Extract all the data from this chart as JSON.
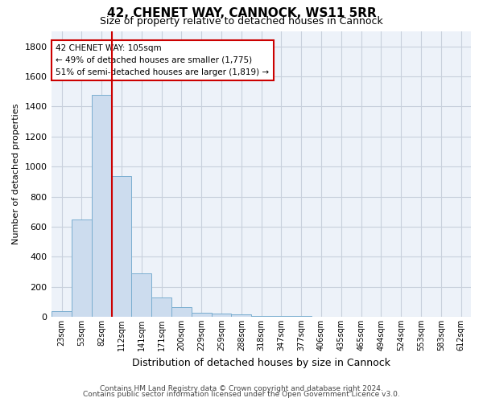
{
  "title1": "42, CHENET WAY, CANNOCK, WS11 5RR",
  "title2": "Size of property relative to detached houses in Cannock",
  "xlabel": "Distribution of detached houses by size in Cannock",
  "ylabel": "Number of detached properties",
  "bins": [
    "23sqm",
    "53sqm",
    "82sqm",
    "112sqm",
    "141sqm",
    "171sqm",
    "200sqm",
    "229sqm",
    "259sqm",
    "288sqm",
    "318sqm",
    "347sqm",
    "377sqm",
    "406sqm",
    "435sqm",
    "465sqm",
    "494sqm",
    "524sqm",
    "553sqm",
    "583sqm",
    "612sqm"
  ],
  "bar_heights": [
    40,
    650,
    1475,
    935,
    290,
    130,
    65,
    25,
    20,
    15,
    5,
    5,
    5,
    0,
    0,
    0,
    0,
    0,
    0,
    0,
    0
  ],
  "bar_color": "#ccdcee",
  "bar_edge_color": "#7aaed0",
  "grid_color": "#c8d0dc",
  "vline_color": "#cc0000",
  "annotation_line1": "42 CHENET WAY: 105sqm",
  "annotation_line2": "← 49% of detached houses are smaller (1,775)",
  "annotation_line3": "51% of semi-detached houses are larger (1,819) →",
  "annotation_box_color": "#cc0000",
  "ylim": [
    0,
    1900
  ],
  "yticks": [
    0,
    200,
    400,
    600,
    800,
    1000,
    1200,
    1400,
    1600,
    1800
  ],
  "footer1": "Contains HM Land Registry data © Crown copyright and database right 2024.",
  "footer2": "Contains public sector information licensed under the Open Government Licence v3.0.",
  "bg_color": "#ffffff",
  "plot_bg_color": "#edf2f9"
}
